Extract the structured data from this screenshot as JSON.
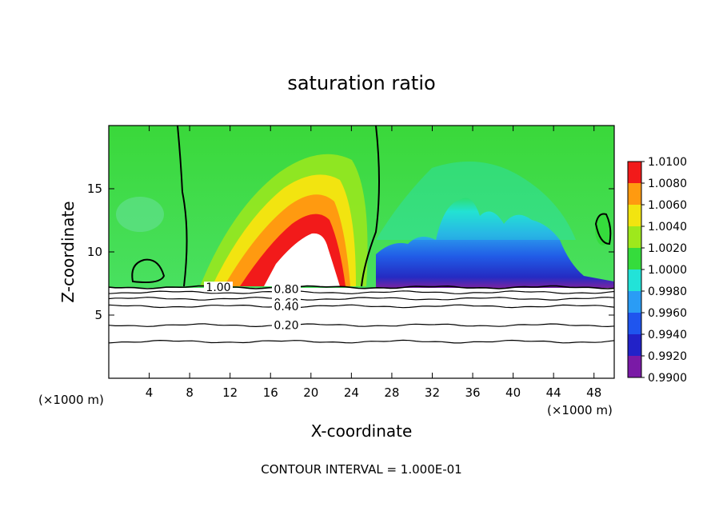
{
  "chart_data": {
    "type": "heatmap",
    "title": "saturation ratio",
    "xlabel": "X-coordinate",
    "ylabel": "Z-coordinate",
    "x_unit_label_left": "(×1000 m)",
    "x_unit_label_right": "(×1000 m)",
    "xlim": [
      0,
      50
    ],
    "ylim": [
      0,
      20
    ],
    "x_ticks": [
      4,
      8,
      12,
      16,
      20,
      24,
      28,
      32,
      36,
      40,
      44,
      48
    ],
    "y_ticks": [
      5,
      10,
      15
    ],
    "colorbar": {
      "levels": [
        0.99,
        0.992,
        0.994,
        0.996,
        0.998,
        1.0,
        1.002,
        1.004,
        1.006,
        1.008,
        1.01
      ],
      "labels": [
        "0.9900",
        "0.9920",
        "0.9940",
        "0.9960",
        "0.9980",
        "1.0000",
        "1.0020",
        "1.0040",
        "1.0060",
        "1.0080",
        "1.0100"
      ],
      "colors": [
        "#7a1aa6",
        "#2222c8",
        "#1f55ee",
        "#2a9cf5",
        "#22e3d8",
        "#35dc3c",
        "#9ee81c",
        "#f2e410",
        "#ff9a10",
        "#f21a1a",
        "#f0a0a8"
      ]
    },
    "contour_lines": [
      {
        "label": "1.00",
        "z": 7.2
      },
      {
        "label": "0.80",
        "z": 6.8
      },
      {
        "label": "0.60",
        "z": 6.3
      },
      {
        "label": "0.40",
        "z": 5.7
      },
      {
        "label": "0.20",
        "z": 4.2
      },
      {
        "label": "",
        "z": 2.9
      }
    ],
    "regions": [
      {
        "name": "supersaturated plume",
        "x_center": 20,
        "z_peak": 12,
        "value": 1.008
      },
      {
        "name": "subsaturated region",
        "x_range": [
          26,
          48
        ],
        "value": 0.994
      }
    ],
    "footer": "CONTOUR INTERVAL = 1.000E-01"
  }
}
